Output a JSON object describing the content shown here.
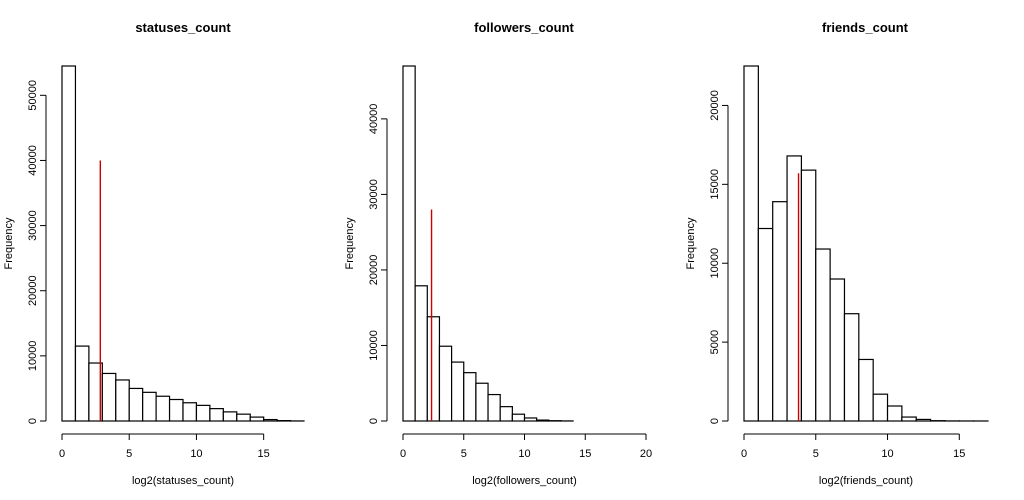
{
  "chart_data": [
    {
      "type": "bar",
      "title": "statuses_count",
      "xlabel": "log2(statuses_count)",
      "ylabel": "Frequency",
      "bin_width": 1,
      "bins_start": [
        0,
        1,
        2,
        3,
        4,
        5,
        6,
        7,
        8,
        9,
        10,
        11,
        12,
        13,
        14,
        15,
        16,
        17
      ],
      "values": [
        54500,
        11500,
        8900,
        7300,
        6300,
        5000,
        4400,
        3800,
        3300,
        2800,
        2400,
        1900,
        1400,
        1050,
        600,
        220,
        60,
        10
      ],
      "xlim": [
        0,
        18
      ],
      "ylim": [
        0,
        54500
      ],
      "xticks": [
        0,
        5,
        10,
        15
      ],
      "xtick_labels": [
        "0",
        "5",
        "10",
        "15"
      ],
      "yticks": [
        0,
        10000,
        20000,
        30000,
        40000,
        50000
      ],
      "ytick_labels": [
        "0",
        "10000",
        "20000",
        "30000",
        "40000",
        "50000"
      ],
      "mean_line": {
        "x": 2.85,
        "y": 40000,
        "color": "#cc0000"
      }
    },
    {
      "type": "bar",
      "title": "followers_count",
      "xlabel": "log2(followers_count)",
      "ylabel": "Frequency",
      "bin_width": 1,
      "bins_start": [
        0,
        1,
        2,
        3,
        4,
        5,
        6,
        7,
        8,
        9,
        10,
        11,
        12,
        13
      ],
      "values": [
        47000,
        17900,
        13800,
        9900,
        7800,
        6400,
        5000,
        3500,
        1900,
        900,
        400,
        120,
        40,
        10
      ],
      "xlim": [
        0,
        20
      ],
      "ylim": [
        0,
        47000
      ],
      "xticks": [
        0,
        5,
        10,
        15,
        20
      ],
      "xtick_labels": [
        "0",
        "5",
        "10",
        "15",
        "20"
      ],
      "yticks": [
        0,
        10000,
        20000,
        30000,
        40000
      ],
      "ytick_labels": [
        "0",
        "10000",
        "20000",
        "30000",
        "40000"
      ],
      "mean_line": {
        "x": 2.35,
        "y": 28000,
        "color": "#cc0000"
      }
    },
    {
      "type": "bar",
      "title": "friends_count",
      "xlabel": "log2(friends_count)",
      "ylabel": "Frequency",
      "bin_width": 1,
      "bins_start": [
        0,
        1,
        2,
        3,
        4,
        5,
        6,
        7,
        8,
        9,
        10,
        11,
        12,
        13,
        14,
        15,
        16
      ],
      "values": [
        22500,
        12200,
        13900,
        16800,
        15900,
        10900,
        9000,
        6800,
        3900,
        1700,
        950,
        250,
        100,
        20,
        5,
        2,
        1
      ],
      "xlim": [
        0,
        17
      ],
      "ylim": [
        0,
        22500
      ],
      "xticks": [
        0,
        5,
        10,
        15
      ],
      "xtick_labels": [
        "0",
        "5",
        "10",
        "15"
      ],
      "yticks": [
        0,
        5000,
        10000,
        15000,
        20000
      ],
      "ytick_labels": [
        "0",
        "5000",
        "10000",
        "15000",
        "20000"
      ],
      "mean_line": {
        "x": 3.8,
        "y": 15700,
        "color": "#cc0000"
      }
    }
  ]
}
